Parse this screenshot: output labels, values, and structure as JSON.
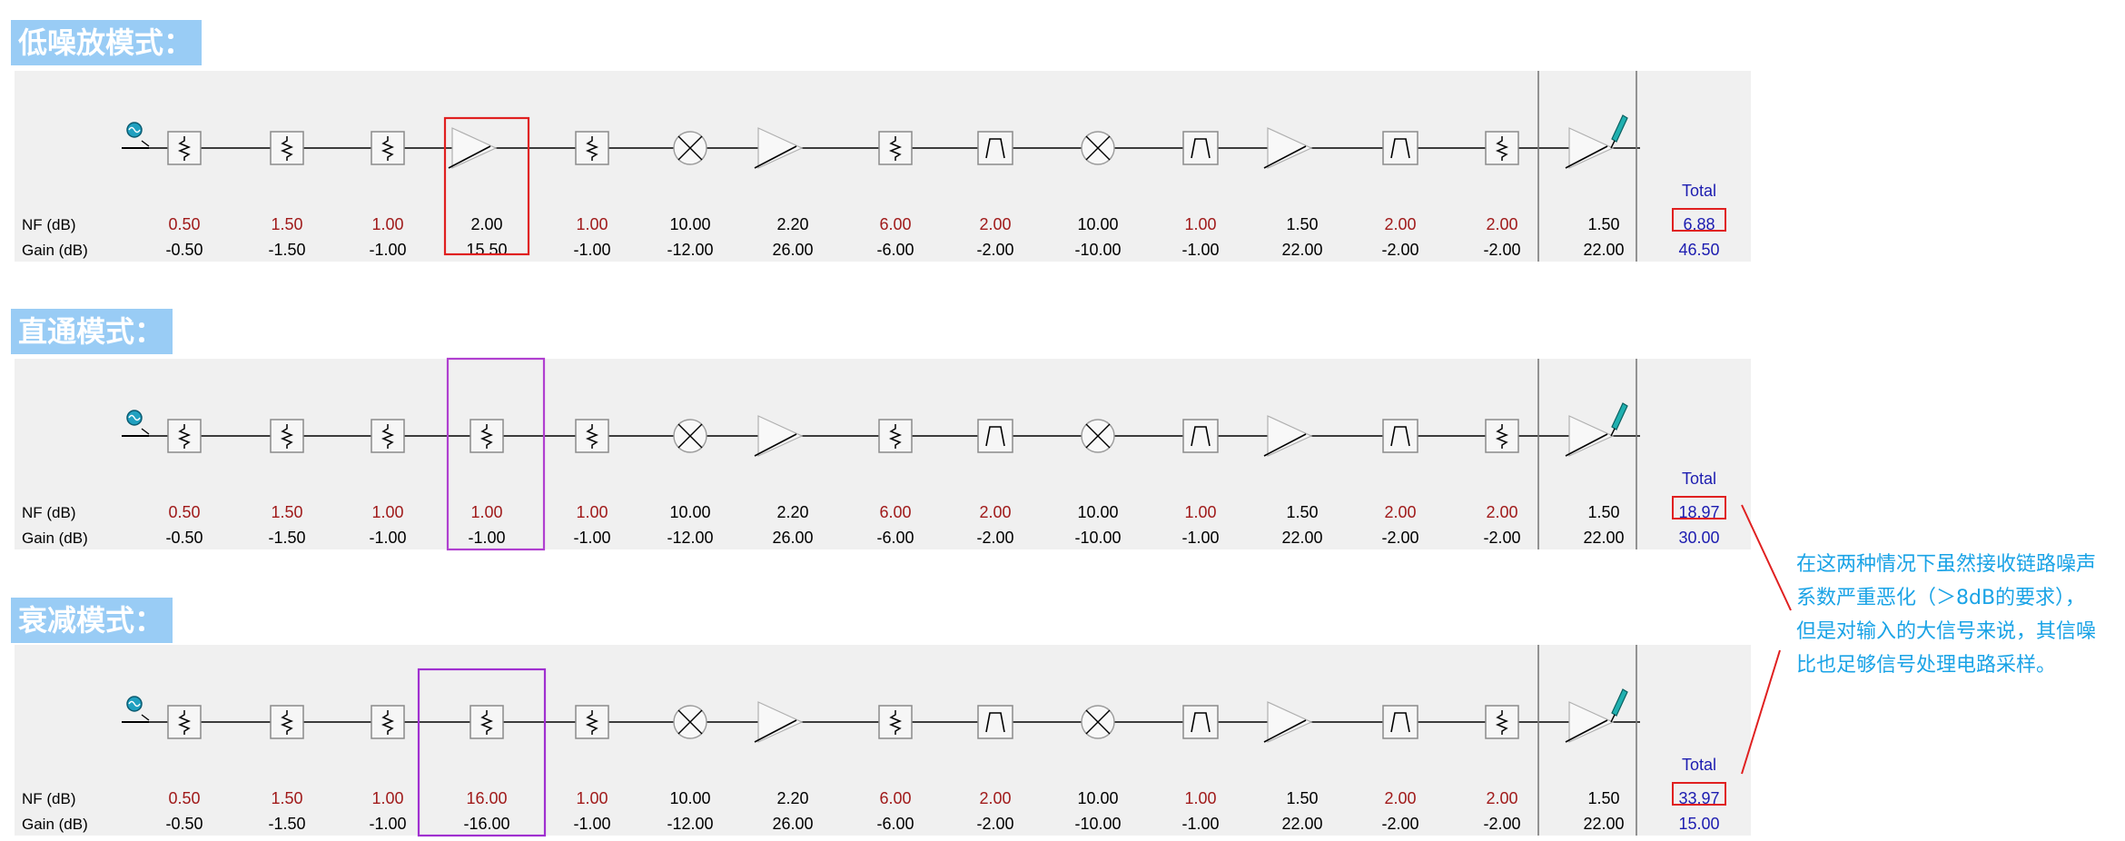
{
  "colors": {
    "nf_highlight": "#a01a1a",
    "normal_text": "#000000",
    "total_text": "#1c1cb0",
    "lna_box": "#e02020",
    "bypass_box": "#b040d0",
    "atten_box": "#a030d0",
    "annotation": "#1aa3e6",
    "label_bg": "#99ccf5"
  },
  "row_labels": {
    "nf": "NF (dB)",
    "gain": "Gain (dB)"
  },
  "total_label": "Total",
  "components": [
    "attenuator-icon",
    "attenuator-icon",
    "attenuator-icon",
    "amplifier-icon",
    "attenuator-icon",
    "mixer-icon",
    "amplifier-icon",
    "attenuator-icon",
    "bandpass-filter-icon",
    "mixer-icon",
    "bandpass-filter-icon",
    "amplifier-icon",
    "bandpass-filter-icon",
    "attenuator-icon",
    "amplifier-icon"
  ],
  "nf_red": [
    true,
    true,
    true,
    false,
    true,
    false,
    false,
    true,
    true,
    false,
    true,
    false,
    true,
    true,
    false
  ],
  "sections": [
    {
      "title": "低噪放模式：",
      "stage4_icon": "amplifier-icon",
      "nf": [
        "0.50",
        "1.50",
        "1.00",
        "2.00",
        "1.00",
        "10.00",
        "2.20",
        "6.00",
        "2.00",
        "10.00",
        "1.00",
        "1.50",
        "2.00",
        "2.00",
        "1.50"
      ],
      "gain": [
        "-0.50",
        "-1.50",
        "-1.00",
        "15.50",
        "-1.00",
        "-12.00",
        "26.00",
        "-6.00",
        "-2.00",
        "-10.00",
        "-1.00",
        "22.00",
        "-2.00",
        "-2.00",
        "22.00"
      ],
      "nf_red_stage4": false,
      "total_nf": "6.88",
      "total_gain": "46.50"
    },
    {
      "title": "直通模式：",
      "stage4_icon": "attenuator-icon",
      "nf": [
        "0.50",
        "1.50",
        "1.00",
        "1.00",
        "1.00",
        "10.00",
        "2.20",
        "6.00",
        "2.00",
        "10.00",
        "1.00",
        "1.50",
        "2.00",
        "2.00",
        "1.50"
      ],
      "gain": [
        "-0.50",
        "-1.50",
        "-1.00",
        "-1.00",
        "-1.00",
        "-12.00",
        "26.00",
        "-6.00",
        "-2.00",
        "-10.00",
        "-1.00",
        "22.00",
        "-2.00",
        "-2.00",
        "22.00"
      ],
      "nf_red_stage4": true,
      "total_nf": "18.97",
      "total_gain": "30.00"
    },
    {
      "title": "衰减模式：",
      "stage4_icon": "attenuator-icon",
      "nf": [
        "0.50",
        "1.50",
        "1.00",
        "16.00",
        "1.00",
        "10.00",
        "2.20",
        "6.00",
        "2.00",
        "10.00",
        "1.00",
        "1.50",
        "2.00",
        "2.00",
        "1.50"
      ],
      "gain": [
        "-0.50",
        "-1.50",
        "-1.00",
        "-16.00",
        "-1.00",
        "-12.00",
        "26.00",
        "-6.00",
        "-2.00",
        "-10.00",
        "-1.00",
        "22.00",
        "-2.00",
        "-2.00",
        "22.00"
      ],
      "nf_red_stage4": true,
      "total_nf": "33.97",
      "total_gain": "15.00"
    }
  ],
  "annotation": {
    "lines": [
      "在这两种情况下虽然接收链路噪声",
      "系数严重恶化（＞8dB的要求），",
      "但是对输入的大信号来说，其信噪",
      "比也足够信号处理电路采样。"
    ]
  }
}
